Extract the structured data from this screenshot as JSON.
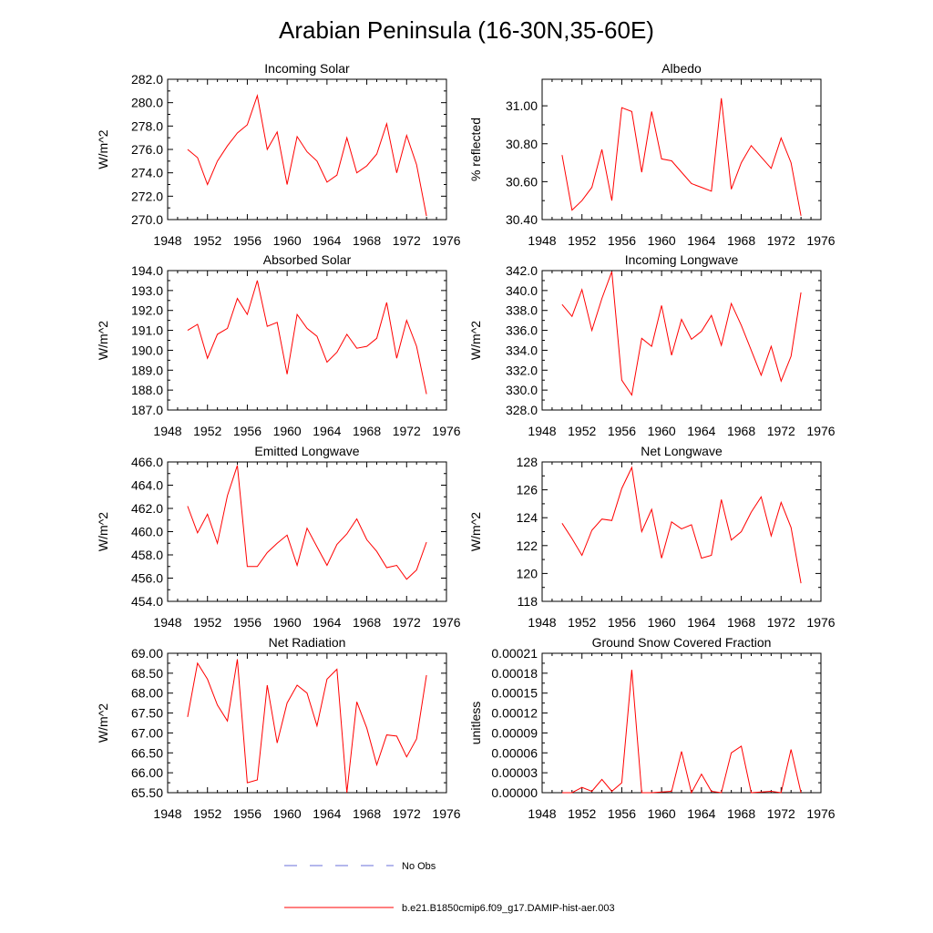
{
  "figure_title": "Arabian Peninsula (16-30N,35-60E)",
  "colors": {
    "model": "#ff0000",
    "obs": "#6a6fd8",
    "axis": "#000000"
  },
  "legend": {
    "obs_label": "No Obs",
    "model_label": "b.e21.B1850cmip6.f09_g17.DAMIP-hist-aer.003"
  },
  "chart_data": [
    {
      "type": "line",
      "title": "Incoming Solar",
      "xlabel": "",
      "ylabel": "W/m^2",
      "xlim": [
        1948,
        1976
      ],
      "ylim": [
        270,
        282
      ],
      "x_ticks": [
        1948,
        1952,
        1956,
        1960,
        1964,
        1968,
        1972,
        1976
      ],
      "y_ticks": [
        270,
        272,
        274,
        276,
        278,
        280,
        282
      ],
      "y_tick_labels": [
        "270.0",
        "272.0",
        "274.0",
        "276.0",
        "278.0",
        "280.0",
        "282.0"
      ],
      "x": [
        1950,
        1951,
        1952,
        1953,
        1954,
        1955,
        1956,
        1957,
        1958,
        1959,
        1960,
        1961,
        1962,
        1963,
        1964,
        1965,
        1966,
        1967,
        1968,
        1969,
        1970,
        1971,
        1972,
        1973,
        1974
      ],
      "series": [
        {
          "values": [
            276.0,
            275.3,
            273.0,
            275.0,
            276.3,
            277.4,
            278.1,
            280.6,
            276.0,
            277.5,
            273.0,
            277.1,
            275.8,
            275.0,
            273.2,
            273.8,
            277.0,
            274.0,
            274.6,
            275.6,
            278.2,
            274.0,
            277.2,
            274.7,
            270.3
          ]
        }
      ]
    },
    {
      "type": "line",
      "title": "Albedo",
      "xlabel": "",
      "ylabel": "% reflected",
      "xlim": [
        1948,
        1976
      ],
      "ylim": [
        30.4,
        31.14
      ],
      "x_ticks": [
        1948,
        1952,
        1956,
        1960,
        1964,
        1968,
        1972,
        1976
      ],
      "y_ticks": [
        30.4,
        30.6,
        30.8,
        31.0
      ],
      "y_tick_labels": [
        "30.40",
        "30.60",
        "30.80",
        "31.00"
      ],
      "x": [
        1950,
        1951,
        1952,
        1953,
        1954,
        1955,
        1956,
        1957,
        1958,
        1959,
        1960,
        1961,
        1962,
        1963,
        1964,
        1965,
        1966,
        1967,
        1968,
        1969,
        1970,
        1971,
        1972,
        1973,
        1974
      ],
      "series": [
        {
          "values": [
            30.74,
            30.45,
            30.5,
            30.57,
            30.77,
            30.5,
            30.99,
            30.97,
            30.65,
            30.97,
            30.72,
            30.71,
            30.65,
            30.59,
            30.57,
            30.55,
            31.04,
            30.56,
            30.7,
            30.79,
            30.73,
            30.67,
            30.83,
            30.7,
            30.42
          ]
        }
      ]
    },
    {
      "type": "line",
      "title": "Absorbed Solar",
      "xlabel": "",
      "ylabel": "W/m^2",
      "xlim": [
        1948,
        1976
      ],
      "ylim": [
        187,
        194
      ],
      "x_ticks": [
        1948,
        1952,
        1956,
        1960,
        1964,
        1968,
        1972,
        1976
      ],
      "y_ticks": [
        187,
        188,
        189,
        190,
        191,
        192,
        193,
        194
      ],
      "y_tick_labels": [
        "187.0",
        "188.0",
        "189.0",
        "190.0",
        "191.0",
        "192.0",
        "193.0",
        "194.0"
      ],
      "x": [
        1950,
        1951,
        1952,
        1953,
        1954,
        1955,
        1956,
        1957,
        1958,
        1959,
        1960,
        1961,
        1962,
        1963,
        1964,
        1965,
        1966,
        1967,
        1968,
        1969,
        1970,
        1971,
        1972,
        1973,
        1974
      ],
      "series": [
        {
          "values": [
            191.0,
            191.3,
            189.6,
            190.8,
            191.1,
            192.6,
            191.8,
            193.5,
            191.2,
            191.4,
            188.8,
            191.8,
            191.1,
            190.7,
            189.4,
            189.9,
            190.8,
            190.1,
            190.2,
            190.6,
            192.4,
            189.6,
            191.5,
            190.2,
            187.8
          ]
        }
      ]
    },
    {
      "type": "line",
      "title": "Incoming Longwave",
      "xlabel": "",
      "ylabel": "W/m^2",
      "xlim": [
        1948,
        1976
      ],
      "ylim": [
        328,
        342
      ],
      "x_ticks": [
        1948,
        1952,
        1956,
        1960,
        1964,
        1968,
        1972,
        1976
      ],
      "y_ticks": [
        328,
        330,
        332,
        334,
        336,
        338,
        340,
        342
      ],
      "y_tick_labels": [
        "328.0",
        "330.0",
        "332.0",
        "334.0",
        "336.0",
        "338.0",
        "340.0",
        "342.0"
      ],
      "x": [
        1950,
        1951,
        1952,
        1953,
        1954,
        1955,
        1956,
        1957,
        1958,
        1959,
        1960,
        1961,
        1962,
        1963,
        1964,
        1965,
        1966,
        1967,
        1968,
        1969,
        1970,
        1971,
        1972,
        1973,
        1974
      ],
      "series": [
        {
          "values": [
            338.6,
            337.4,
            340.1,
            336.0,
            339.2,
            341.9,
            331.0,
            329.5,
            335.2,
            334.4,
            338.5,
            333.5,
            337.1,
            335.1,
            335.9,
            337.5,
            334.5,
            338.7,
            336.5,
            334.0,
            331.5,
            334.4,
            330.9,
            333.4,
            339.8
          ]
        }
      ]
    },
    {
      "type": "line",
      "title": "Emitted Longwave",
      "xlabel": "",
      "ylabel": "W/m^2",
      "xlim": [
        1948,
        1976
      ],
      "ylim": [
        454,
        466
      ],
      "x_ticks": [
        1948,
        1952,
        1956,
        1960,
        1964,
        1968,
        1972,
        1976
      ],
      "y_ticks": [
        454,
        456,
        458,
        460,
        462,
        464,
        466
      ],
      "y_tick_labels": [
        "454.0",
        "456.0",
        "458.0",
        "460.0",
        "462.0",
        "464.0",
        "466.0"
      ],
      "x": [
        1950,
        1951,
        1952,
        1953,
        1954,
        1955,
        1956,
        1957,
        1958,
        1959,
        1960,
        1961,
        1962,
        1963,
        1964,
        1965,
        1966,
        1967,
        1968,
        1969,
        1970,
        1971,
        1972,
        1973,
        1974
      ],
      "series": [
        {
          "values": [
            462.2,
            459.9,
            461.5,
            459.0,
            463.1,
            465.7,
            457.0,
            457.0,
            458.2,
            459.0,
            459.7,
            457.1,
            460.3,
            458.7,
            457.1,
            458.9,
            459.8,
            461.1,
            459.3,
            458.3,
            456.9,
            457.1,
            455.9,
            456.7,
            459.1
          ]
        }
      ]
    },
    {
      "type": "line",
      "title": "Net Longwave",
      "xlabel": "",
      "ylabel": "W/m^2",
      "xlim": [
        1948,
        1976
      ],
      "ylim": [
        118,
        128
      ],
      "x_ticks": [
        1948,
        1952,
        1956,
        1960,
        1964,
        1968,
        1972,
        1976
      ],
      "y_ticks": [
        118,
        120,
        122,
        124,
        126,
        128
      ],
      "y_tick_labels": [
        "118",
        "120",
        "122",
        "124",
        "126",
        "128"
      ],
      "x": [
        1950,
        1951,
        1952,
        1953,
        1954,
        1955,
        1956,
        1957,
        1958,
        1959,
        1960,
        1961,
        1962,
        1963,
        1964,
        1965,
        1966,
        1967,
        1968,
        1969,
        1970,
        1971,
        1972,
        1973,
        1974
      ],
      "series": [
        {
          "values": [
            123.6,
            122.5,
            121.3,
            123.1,
            123.9,
            123.8,
            126.1,
            127.6,
            123.0,
            124.6,
            121.1,
            123.7,
            123.2,
            123.5,
            121.1,
            121.3,
            125.3,
            122.4,
            123.0,
            124.4,
            125.5,
            122.7,
            125.1,
            123.3,
            119.3
          ]
        }
      ]
    },
    {
      "type": "line",
      "title": "Net Radiation",
      "xlabel": "",
      "ylabel": "W/m^2",
      "xlim": [
        1948,
        1976
      ],
      "ylim": [
        65.5,
        69.0
      ],
      "x_ticks": [
        1948,
        1952,
        1956,
        1960,
        1964,
        1968,
        1972,
        1976
      ],
      "y_ticks": [
        65.5,
        66.0,
        66.5,
        67.0,
        67.5,
        68.0,
        68.5,
        69.0
      ],
      "y_tick_labels": [
        "65.50",
        "66.00",
        "66.50",
        "67.00",
        "67.50",
        "68.00",
        "68.50",
        "69.00"
      ],
      "x": [
        1950,
        1951,
        1952,
        1953,
        1954,
        1955,
        1956,
        1957,
        1958,
        1959,
        1960,
        1961,
        1962,
        1963,
        1964,
        1965,
        1966,
        1967,
        1968,
        1969,
        1970,
        1971,
        1972,
        1973,
        1974
      ],
      "series": [
        {
          "values": [
            67.4,
            68.75,
            68.35,
            67.7,
            67.3,
            68.85,
            65.75,
            65.82,
            68.2,
            66.75,
            67.75,
            68.2,
            68.0,
            67.18,
            68.35,
            68.6,
            65.5,
            67.78,
            67.12,
            66.2,
            66.95,
            66.92,
            66.4,
            66.85,
            68.45
          ]
        }
      ]
    },
    {
      "type": "line",
      "title": "Ground Snow Covered Fraction",
      "xlabel": "",
      "ylabel": "unitless",
      "xlim": [
        1948,
        1976
      ],
      "ylim": [
        0,
        0.00021
      ],
      "x_ticks": [
        1948,
        1952,
        1956,
        1960,
        1964,
        1968,
        1972,
        1976
      ],
      "y_ticks": [
        0,
        3e-05,
        6e-05,
        9e-05,
        0.00012,
        0.00015,
        0.00018,
        0.00021
      ],
      "y_tick_labels": [
        "0.00000",
        "0.00003",
        "0.00006",
        "0.00009",
        "0.00012",
        "0.00015",
        "0.00018",
        "0.00021"
      ],
      "x": [
        1950,
        1951,
        1952,
        1953,
        1954,
        1955,
        1956,
        1957,
        1958,
        1959,
        1960,
        1961,
        1962,
        1963,
        1964,
        1965,
        1966,
        1967,
        1968,
        1969,
        1970,
        1971,
        1972,
        1973,
        1974
      ],
      "series": [
        {
          "values": [
            0,
            0,
            8e-06,
            2e-06,
            2e-05,
            2e-06,
            1.5e-05,
            0.000185,
            0,
            0,
            1e-06,
            2e-06,
            6.2e-05,
            0,
            2.8e-05,
            2e-06,
            0,
            6e-05,
            7e-05,
            0,
            1e-06,
            2e-06,
            0,
            6.5e-05,
            0
          ]
        }
      ]
    }
  ]
}
